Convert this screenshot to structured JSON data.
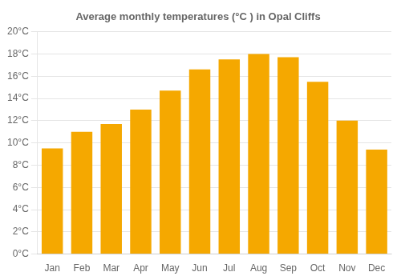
{
  "chart_data": {
    "type": "bar",
    "title": "Average monthly temperatures (°C ) in Opal Cliffs",
    "categories": [
      "Jan",
      "Feb",
      "Mar",
      "Apr",
      "May",
      "Jun",
      "Jul",
      "Aug",
      "Sep",
      "Oct",
      "Nov",
      "Dec"
    ],
    "values": [
      9.5,
      11.0,
      11.7,
      13.0,
      14.7,
      16.6,
      17.5,
      18.0,
      17.7,
      15.5,
      12.0,
      9.4
    ],
    "color": "#F5A800",
    "ylim": [
      0,
      20
    ],
    "yticks": [
      {
        "value": 0,
        "label": "0°C"
      },
      {
        "value": 2,
        "label": "2°C"
      },
      {
        "value": 4,
        "label": "4°C"
      },
      {
        "value": 6,
        "label": "6°C"
      },
      {
        "value": 8,
        "label": "8°C"
      },
      {
        "value": 10,
        "label": "10°C"
      },
      {
        "value": 12,
        "label": "12°C"
      },
      {
        "value": 14,
        "label": "14°C"
      },
      {
        "value": 16,
        "label": "16°C"
      },
      {
        "value": 18,
        "label": "18°C"
      },
      {
        "value": 20,
        "label": "20°C"
      }
    ],
    "grid": true
  }
}
